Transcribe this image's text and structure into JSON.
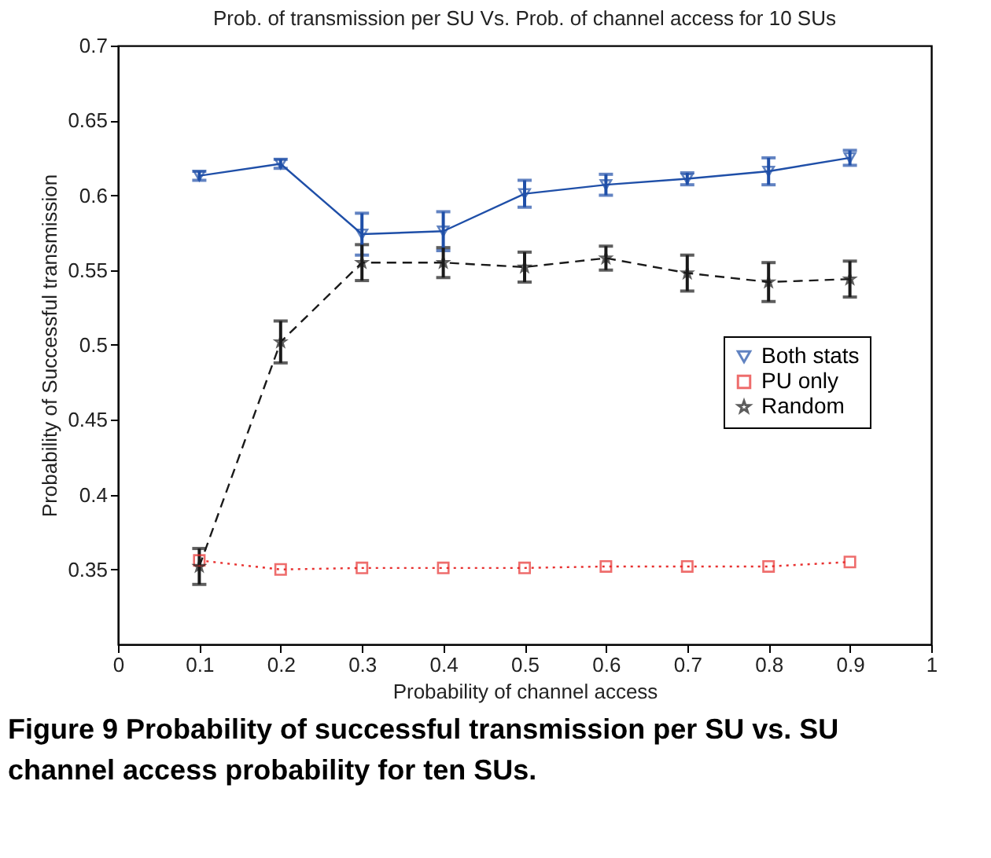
{
  "chart_data": {
    "type": "line",
    "title": "Prob. of transmission per SU Vs. Prob. of channel access for 10 SUs",
    "xlabel": "Probability of channel access",
    "ylabel": "Probability of Successful transmission",
    "annotations": [
      "Figure 9 Probability of successful transmission per SU vs. SU channel access probability for ten SUs."
    ],
    "x": [
      0.1,
      0.2,
      0.3,
      0.4,
      0.5,
      0.6,
      0.7,
      0.8,
      0.9
    ],
    "series": [
      {
        "name": "Both stats",
        "color": "#1f4fa8",
        "marker": "triangle",
        "line_style": "solid",
        "values": [
          0.613,
          0.621,
          0.574,
          0.576,
          0.601,
          0.607,
          0.611,
          0.616,
          0.625
        ],
        "errors": [
          0.003,
          0.003,
          0.014,
          0.013,
          0.009,
          0.007,
          0.004,
          0.009,
          0.005
        ]
      },
      {
        "name": "PU only",
        "color": "#e8302f",
        "marker": "square",
        "line_style": "dotted",
        "values": [
          0.356,
          0.35,
          0.351,
          0.351,
          0.351,
          0.352,
          0.352,
          0.352,
          0.355
        ]
      },
      {
        "name": "Random",
        "color": "#1a1a1a",
        "marker": "star",
        "line_style": "dashed",
        "values": [
          0.352,
          0.502,
          0.555,
          0.555,
          0.552,
          0.558,
          0.548,
          0.542,
          0.544
        ],
        "errors": [
          0.012,
          0.014,
          0.012,
          0.01,
          0.01,
          0.008,
          0.012,
          0.013,
          0.012
        ]
      }
    ],
    "xlim": [
      0,
      1
    ],
    "xticks": [
      0,
      0.1,
      0.2,
      0.3,
      0.4,
      0.5,
      0.6,
      0.7,
      0.8,
      0.9,
      1
    ],
    "ylim": [
      0.3,
      0.7
    ],
    "yticks": [
      0.35,
      0.4,
      0.45,
      0.5,
      0.55,
      0.6,
      0.65,
      0.7
    ],
    "grid": false,
    "legend": "right"
  }
}
